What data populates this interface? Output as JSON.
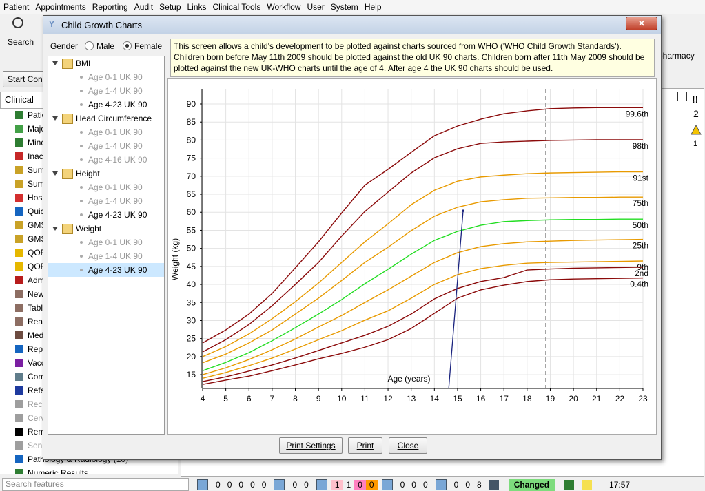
{
  "menu": [
    "Patient",
    "Appointments",
    "Reporting",
    "Audit",
    "Setup",
    "Links",
    "Clinical Tools",
    "Workflow",
    "User",
    "System",
    "Help"
  ],
  "toolbar": {
    "search": "Search",
    "start": "Start Cons",
    "pharmacy": "pharmacy"
  },
  "left_tab": "Clinical",
  "left_items": [
    "Patie",
    "Majo",
    "Minc",
    "Inac",
    "Sum",
    "Sum",
    "Hos",
    "Quic",
    "GMS",
    "GMS",
    "QOF",
    "QOF",
    "Adm",
    "New",
    "Tabl",
    "Rea",
    "Med",
    "Rep",
    "Vacc",
    "Com",
    "Refe",
    "Rec",
    "Cerv",
    "Rem",
    "Sen",
    "Pathology & Radiology (10)",
    "Numeric Results"
  ],
  "right_panel": {
    "alerts": "!!",
    "alert_count": "2",
    "warning_count": "1"
  },
  "search_placeholder": "Search features",
  "status": {
    "groups": [
      [
        "0",
        "0",
        "0",
        "0",
        "0"
      ],
      [
        "0",
        "0"
      ],
      [
        "1",
        "1",
        "0",
        "0"
      ],
      [
        "0",
        "0",
        "0"
      ],
      [
        "0",
        "0",
        "8"
      ]
    ],
    "state": "Changed",
    "time": "17:57"
  },
  "dialog": {
    "title": "Child Growth Charts",
    "gender": {
      "label": "Gender",
      "options": [
        "Male",
        "Female"
      ],
      "selected": 1
    },
    "tree": [
      {
        "label": "BMI",
        "children": [
          {
            "label": "Age 0-1 UK 90",
            "enabled": false
          },
          {
            "label": "Age 1-4 UK 90",
            "enabled": false
          },
          {
            "label": "Age 4-23 UK 90",
            "enabled": true
          }
        ]
      },
      {
        "label": "Head Circumference",
        "children": [
          {
            "label": "Age 0-1 UK 90",
            "enabled": false
          },
          {
            "label": "Age 1-4 UK 90",
            "enabled": false
          },
          {
            "label": "Age 4-16 UK 90",
            "enabled": false
          }
        ]
      },
      {
        "label": "Height",
        "children": [
          {
            "label": "Age 0-1 UK 90",
            "enabled": false
          },
          {
            "label": "Age 1-4 UK 90",
            "enabled": false
          },
          {
            "label": "Age 4-23 UK 90",
            "enabled": true
          }
        ]
      },
      {
        "label": "Weight",
        "children": [
          {
            "label": "Age 0-1 UK 90",
            "enabled": false
          },
          {
            "label": "Age 1-4 UK 90",
            "enabled": false
          },
          {
            "label": "Age 4-23 UK 90",
            "enabled": true,
            "selected": true
          }
        ]
      }
    ],
    "info": "This screen allows a child's development to be plotted against charts sourced from WHO ('WHO Child Growth Standards'). Children born before May 11th 2009 should be plotted against the old UK 90 charts. Children born after 11th May 2009 should be plotted against the new UK-WHO charts until the age of 4. After age 4 the UK 90 charts should be used.",
    "buttons": [
      "Print Settings",
      "Print",
      "Close"
    ]
  },
  "chart_data": {
    "type": "line",
    "x_label": "Age (years)",
    "y_label": "Weight (kg)",
    "x": [
      4,
      5,
      6,
      7,
      8,
      9,
      10,
      11,
      12,
      13,
      14,
      15,
      16,
      17,
      18,
      19,
      20,
      21,
      22,
      23
    ],
    "xlim": [
      4,
      23
    ],
    "ylim": [
      11.2,
      94.2
    ],
    "xticks": [
      4,
      5,
      6,
      7,
      8,
      9,
      10,
      11,
      12,
      13,
      14,
      15,
      16,
      17,
      18,
      19,
      20,
      21,
      22,
      23
    ],
    "yticks": [
      15,
      20,
      25,
      30,
      35,
      40,
      45,
      50,
      55,
      60,
      65,
      70,
      75,
      80,
      85,
      90
    ],
    "grid": true,
    "series": [
      {
        "name": "99.6th",
        "color": "#8b0a0a",
        "values": [
          23.8,
          27.4,
          31.8,
          37.5,
          44.6,
          51.8,
          59.8,
          67.5,
          71.9,
          76.6,
          81.2,
          83.9,
          85.8,
          87.3,
          88.1,
          88.7,
          88.9,
          89.0,
          89.0,
          89.0
        ]
      },
      {
        "name": "98th",
        "color": "#8b0a0a",
        "values": [
          21.3,
          24.7,
          28.9,
          34.1,
          40.0,
          46.1,
          53.4,
          60.2,
          65.6,
          70.9,
          75.1,
          77.6,
          79.1,
          79.5,
          79.7,
          79.9,
          80.0,
          80.1,
          80.1,
          80.1
        ]
      },
      {
        "name": "91st",
        "color": "#e89a00",
        "values": [
          20.0,
          22.8,
          26.3,
          30.5,
          35.2,
          40.4,
          46.1,
          51.8,
          56.8,
          62.1,
          66.1,
          68.6,
          69.8,
          70.3,
          70.7,
          70.9,
          71.0,
          71.1,
          71.2,
          71.2
        ]
      },
      {
        "name": "75th",
        "color": "#e89a00",
        "values": [
          18.3,
          20.7,
          23.8,
          27.4,
          31.8,
          36.2,
          41.1,
          46.1,
          50.3,
          54.9,
          58.9,
          61.4,
          62.9,
          63.5,
          63.9,
          64.0,
          64.1,
          64.1,
          64.2,
          64.2
        ]
      },
      {
        "name": "50th",
        "color": "#22dd22",
        "values": [
          16.1,
          18.4,
          21.1,
          24.4,
          28.0,
          31.8,
          35.8,
          40.2,
          44.2,
          48.4,
          52.2,
          54.7,
          56.4,
          57.4,
          57.7,
          57.9,
          58.0,
          58.0,
          58.1,
          58.1
        ]
      },
      {
        "name": "25th",
        "color": "#e89a00",
        "values": [
          15.0,
          16.9,
          19.2,
          21.9,
          24.9,
          28.2,
          31.4,
          35.0,
          38.5,
          42.3,
          46.1,
          48.8,
          50.5,
          51.3,
          51.8,
          52.0,
          52.2,
          52.3,
          52.4,
          52.5
        ]
      },
      {
        "name": "9th",
        "color": "#e89a00",
        "values": [
          14.0,
          15.6,
          17.5,
          19.6,
          22.1,
          24.7,
          27.2,
          30.1,
          32.7,
          36.2,
          40.0,
          42.7,
          44.4,
          45.3,
          45.9,
          46.1,
          46.2,
          46.3,
          46.4,
          46.5
        ]
      },
      {
        "name": "2nd",
        "color": "#8b0a0a",
        "values": [
          13.1,
          14.4,
          16.0,
          17.7,
          19.6,
          21.7,
          23.8,
          25.9,
          28.4,
          31.8,
          36.0,
          38.9,
          40.8,
          41.9,
          44.0,
          44.3,
          44.5,
          44.6,
          44.7,
          44.8
        ]
      },
      {
        "name": "0.4th",
        "color": "#8b0a0a",
        "values": [
          12.3,
          13.5,
          14.6,
          16.1,
          17.7,
          19.4,
          20.9,
          22.6,
          24.7,
          27.8,
          32.0,
          36.2,
          38.5,
          39.8,
          40.8,
          41.3,
          41.5,
          41.6,
          41.7,
          41.8
        ]
      }
    ],
    "measurement": {
      "color": "#1a237e",
      "x": [
        14.62,
        15.24
      ],
      "y": [
        11.2,
        60.4
      ]
    },
    "reference_x": 18.8
  }
}
